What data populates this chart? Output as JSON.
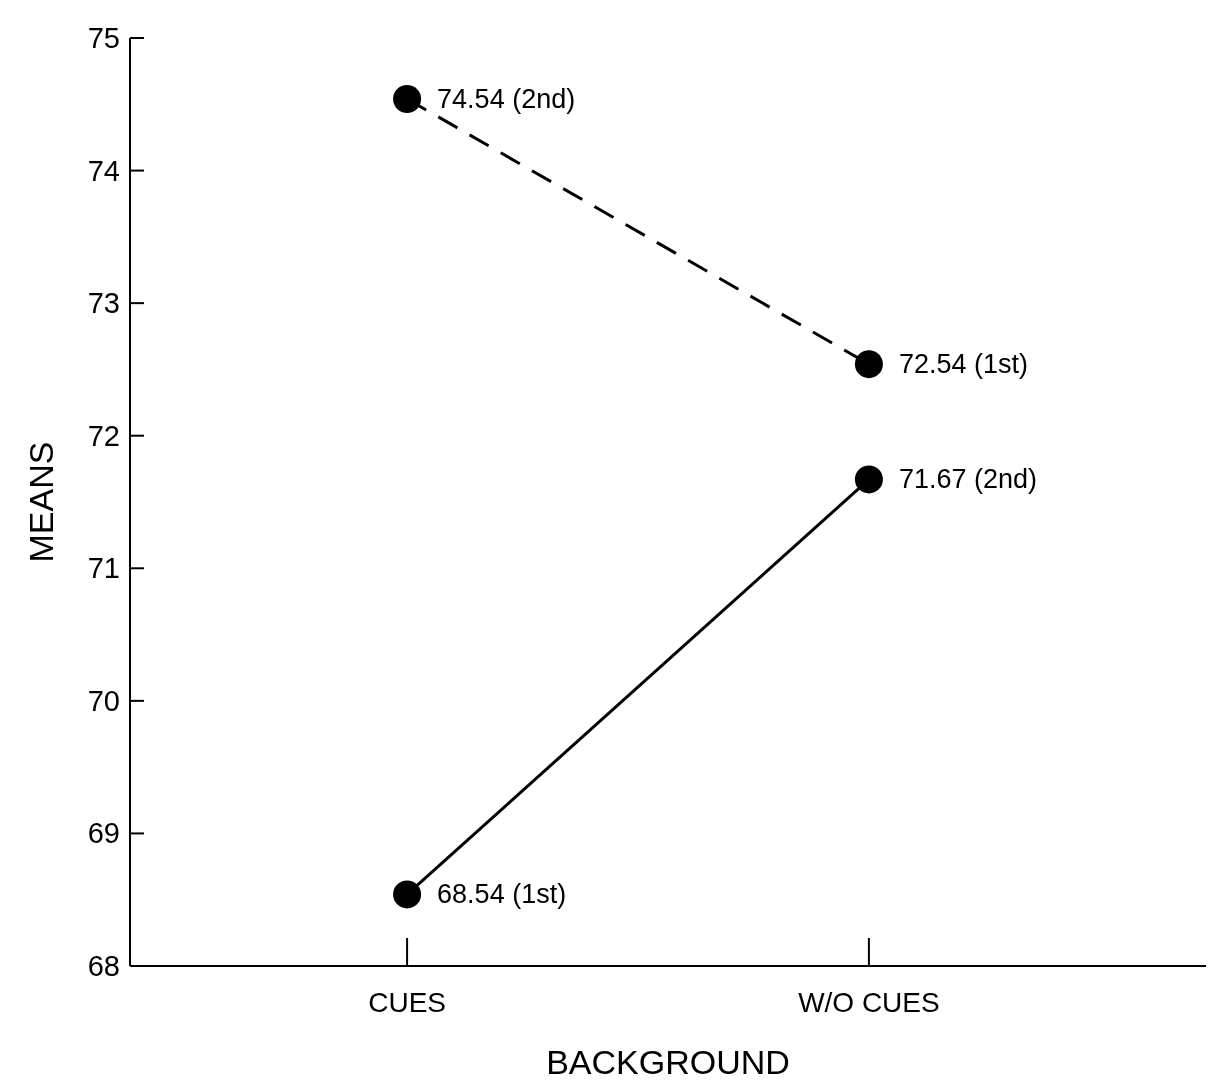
{
  "chart_data": {
    "type": "line",
    "xlabel": "BACKGROUND",
    "ylabel": "MEANS",
    "categories": [
      "CUES",
      "W/O CUES"
    ],
    "series": [
      {
        "color": "#000000",
        "line_style": "dashed",
        "values": [
          74.54,
          72.54
        ],
        "value_labels": [
          "74.54 (2nd)",
          "72.54 (1st)"
        ]
      },
      {
        "color": "#000000",
        "line_style": "solid",
        "values": [
          68.54,
          71.67
        ],
        "value_labels": [
          "68.54 (1st)",
          "71.67 (2nd)"
        ]
      }
    ],
    "ylim": [
      68,
      75
    ],
    "yticks": [
      68,
      69,
      70,
      71,
      72,
      73,
      74,
      75
    ],
    "grid": false,
    "marker": "circle"
  }
}
